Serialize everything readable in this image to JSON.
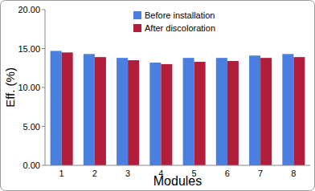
{
  "chart_data": {
    "type": "bar",
    "x_label": "Modules",
    "y_label": "Eff. (%)",
    "categories": [
      "1",
      "2",
      "3",
      "4",
      "5",
      "6",
      "7",
      "8"
    ],
    "series": [
      {
        "name": "Before installation",
        "color": "#4a7fe0",
        "values": [
          14.7,
          14.3,
          13.8,
          13.2,
          13.8,
          13.8,
          14.1,
          14.3
        ]
      },
      {
        "name": "After discoloration",
        "color": "#b01e3c",
        "values": [
          14.5,
          13.9,
          13.5,
          13.0,
          13.3,
          13.4,
          13.8,
          13.9
        ]
      }
    ],
    "ylim": [
      0,
      20
    ],
    "yticks": [
      {
        "value": 0,
        "label": "0.00"
      },
      {
        "value": 5,
        "label": "5.00"
      },
      {
        "value": 10,
        "label": "10.00"
      },
      {
        "value": 15,
        "label": "15.00"
      },
      {
        "value": 20,
        "label": "20.00"
      }
    ],
    "grid": false,
    "legend": "upper center"
  }
}
